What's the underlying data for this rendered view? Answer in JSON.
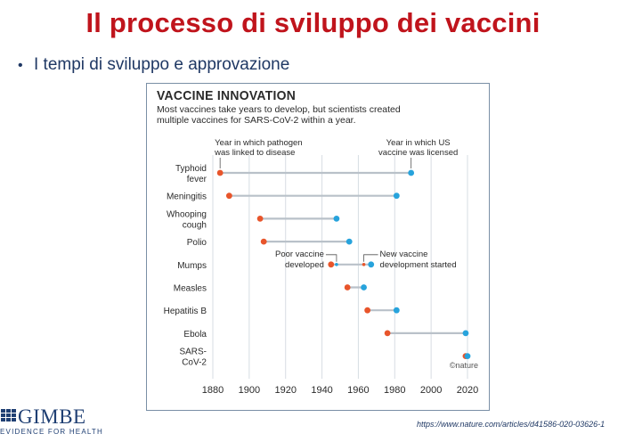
{
  "slide": {
    "title": "Il processo di sviluppo dei vaccini",
    "bullet": "I tempi di sviluppo e approvazione",
    "source_url": "https://www.nature.com/articles/d41586-020-03626-1"
  },
  "logo": {
    "name": "GIMBE",
    "tagline": "EVIDENCE FOR HEALTH"
  },
  "chart_data": {
    "type": "dumbbell",
    "title": "VACCINE INNOVATION",
    "subtitle_lines": [
      "Most vaccines take years to develop, but scientists created",
      "multiple vaccines for SARS-CoV-2 within a year."
    ],
    "legend": {
      "start_lines": [
        "Year in which pathogen",
        "was linked to disease"
      ],
      "end_lines": [
        "Year in which US",
        "vaccine was licensed"
      ]
    },
    "colors": {
      "start": "#e8552b",
      "end": "#27a3dc",
      "connector": "#b9c1c9",
      "grid": "#d7dde3",
      "text": "#2a2a2a"
    },
    "credit": "©nature",
    "x_ticks": [
      1880,
      1900,
      1920,
      1940,
      1960,
      1980,
      2000,
      2020
    ],
    "xlim": [
      1880,
      2020
    ],
    "rows": [
      {
        "label": [
          "Typhoid",
          "fever"
        ],
        "start": 1884,
        "end": 1989
      },
      {
        "label": [
          "Meningitis"
        ],
        "start": 1889,
        "end": 1981
      },
      {
        "label": [
          "Whooping",
          "cough"
        ],
        "start": 1906,
        "end": 1948
      },
      {
        "label": [
          "Polio"
        ],
        "start": 1908,
        "end": 1955
      },
      {
        "label": [
          "Mumps"
        ],
        "start": 1945,
        "end": 1967
      },
      {
        "label": [
          "Measles"
        ],
        "start": 1954,
        "end": 1963
      },
      {
        "label": [
          "Hepatitis B"
        ],
        "start": 1965,
        "end": 1981
      },
      {
        "label": [
          "Ebola"
        ],
        "start": 1976,
        "end": 2019
      },
      {
        "label": [
          "SARS-",
          "CoV-2"
        ],
        "start": 2019,
        "end": 2020
      }
    ],
    "mumps_annotations": {
      "poor_lines": [
        "Poor vaccine",
        "developed"
      ],
      "new_lines": [
        "New vaccine",
        "development started"
      ],
      "poor_year": 1948,
      "new_year": 1963
    }
  }
}
